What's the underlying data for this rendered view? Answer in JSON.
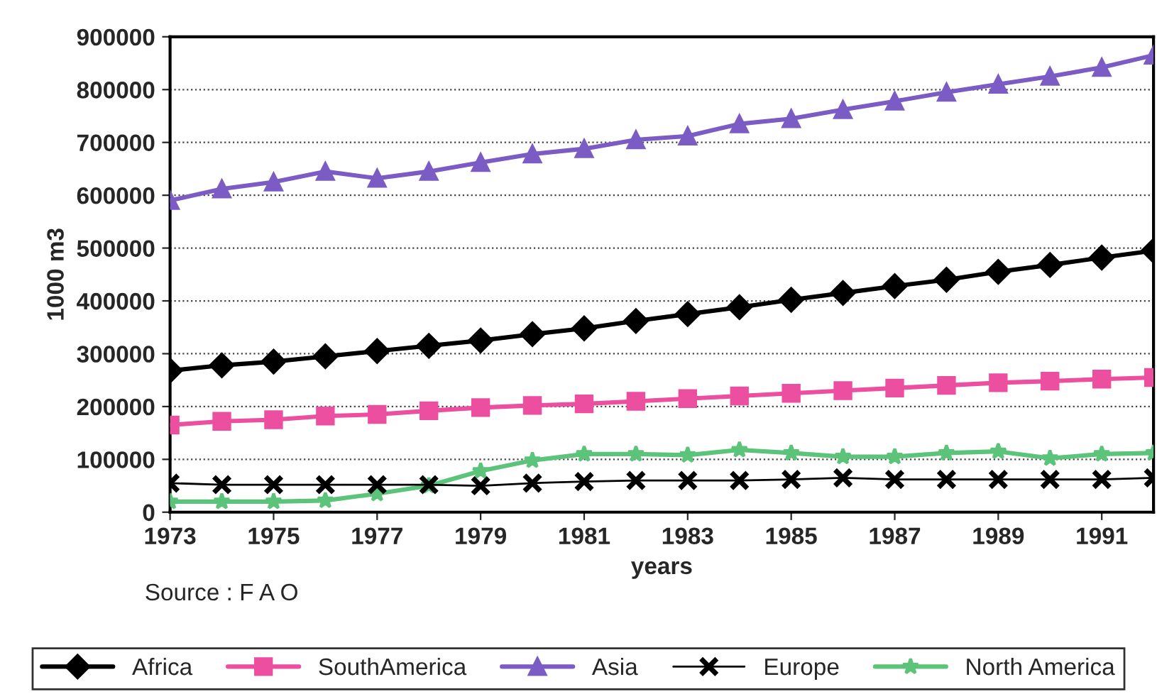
{
  "chart_data": {
    "type": "line",
    "xlabel": "years",
    "ylabel": "1000 m3",
    "annotations": [
      "Source : F A O"
    ],
    "x": [
      1973,
      1974,
      1975,
      1976,
      1977,
      1978,
      1979,
      1980,
      1981,
      1982,
      1983,
      1984,
      1985,
      1986,
      1987,
      1988,
      1989,
      1990,
      1991,
      1992
    ],
    "xlim": [
      1973,
      1992
    ],
    "xticks": [
      1973,
      1975,
      1977,
      1979,
      1981,
      1983,
      1985,
      1987,
      1989,
      1991
    ],
    "ylim": [
      0,
      900000
    ],
    "yticks": [
      0,
      100000,
      200000,
      300000,
      400000,
      500000,
      600000,
      700000,
      800000,
      900000
    ],
    "grid": "y",
    "legend": "bottom",
    "series": [
      {
        "name": "Africa",
        "color": "#000000",
        "marker": "diamond",
        "values": [
          268000,
          278000,
          285000,
          295000,
          305000,
          315000,
          325000,
          337000,
          348000,
          362000,
          375000,
          388000,
          402000,
          415000,
          428000,
          440000,
          455000,
          468000,
          482000,
          495000
        ]
      },
      {
        "name": "SouthAmerica",
        "color": "#ec4fa0",
        "marker": "square",
        "values": [
          165000,
          172000,
          175000,
          182000,
          185000,
          192000,
          198000,
          202000,
          205000,
          210000,
          215000,
          220000,
          225000,
          230000,
          235000,
          240000,
          245000,
          248000,
          252000,
          255000
        ]
      },
      {
        "name": "Asia",
        "color": "#7b5cc4",
        "marker": "triangle",
        "values": [
          590000,
          612000,
          625000,
          645000,
          632000,
          645000,
          662000,
          678000,
          688000,
          705000,
          712000,
          735000,
          745000,
          762000,
          778000,
          795000,
          810000,
          825000,
          842000,
          865000
        ]
      },
      {
        "name": "Europe",
        "color": "#000000",
        "marker": "cross",
        "values": [
          55000,
          52000,
          52000,
          52000,
          52000,
          52000,
          50000,
          55000,
          58000,
          60000,
          60000,
          60000,
          62000,
          65000,
          62000,
          62000,
          62000,
          62000,
          62000,
          65000
        ]
      },
      {
        "name": "North America",
        "color": "#5cc47a",
        "marker": "star",
        "values": [
          20000,
          20000,
          20000,
          22000,
          35000,
          50000,
          78000,
          98000,
          110000,
          110000,
          108000,
          118000,
          112000,
          105000,
          105000,
          112000,
          115000,
          102000,
          110000,
          112000
        ]
      }
    ]
  }
}
